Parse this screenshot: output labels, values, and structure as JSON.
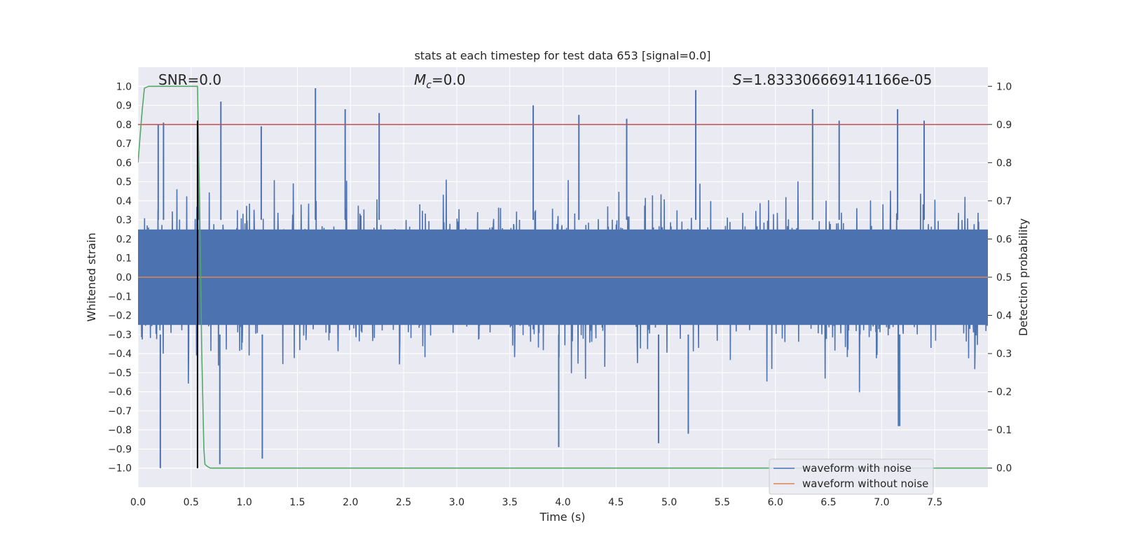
{
  "chart_data": {
    "type": "line",
    "title": "stats at each timestep for test data 653 [signal=0.0]",
    "xlabel": "Time (s)",
    "ylabel_left": "Whitened strain",
    "ylabel_right": "Detection probability",
    "xlim": [
      0.0,
      8.0
    ],
    "ylim_left": [
      -1.1,
      1.1
    ],
    "ylim_right": [
      -0.05,
      1.05
    ],
    "x_ticks": [
      0.0,
      0.5,
      1.0,
      1.5,
      2.0,
      2.5,
      3.0,
      3.5,
      4.0,
      4.5,
      5.0,
      5.5,
      6.0,
      6.5,
      7.0,
      7.5
    ],
    "x_tick_labels": [
      "0.0",
      "0.5",
      "1.0",
      "1.5",
      "2.0",
      "2.5",
      "3.0",
      "3.5",
      "4.0",
      "4.5",
      "5.0",
      "5.5",
      "6.0",
      "6.5",
      "7.0",
      "7.5"
    ],
    "y_ticks_left": [
      1.0,
      0.9,
      0.8,
      0.7,
      0.6,
      0.5,
      0.4,
      0.3,
      0.2,
      0.1,
      0.0,
      -0.1,
      -0.2,
      -0.3,
      -0.4,
      -0.5,
      -0.6,
      -0.7,
      -0.8,
      -0.9,
      -1.0
    ],
    "y_tick_labels_left": [
      "1.0",
      "0.9",
      "0.8",
      "0.7",
      "0.6",
      "0.5",
      "0.4",
      "0.3",
      "0.2",
      "0.1",
      "0.0",
      "−0.1",
      "−0.2",
      "−0.3",
      "−0.4",
      "−0.5",
      "−0.6",
      "−0.7",
      "−0.8",
      "−0.9",
      "−1.0"
    ],
    "y_ticks_right": [
      1.0,
      0.9,
      0.8,
      0.7,
      0.6,
      0.5,
      0.4,
      0.3,
      0.2,
      0.1,
      0.0
    ],
    "y_tick_labels_right": [
      "1.0",
      "0.9",
      "0.8",
      "0.7",
      "0.6",
      "0.5",
      "0.4",
      "0.3",
      "0.2",
      "0.1",
      "0.0"
    ],
    "annotations": {
      "snr": "SNR=0.0",
      "mc_symbol": "M",
      "mc_subscript": "c",
      "mc_value": "=0.0",
      "s_symbol": "S",
      "s_value": "=1.833306669141166e-05"
    },
    "threshold": {
      "value": 0.9,
      "axis": "right",
      "color": "#c44e52"
    },
    "marker_time": 0.56,
    "series": [
      {
        "name": "waveform with noise",
        "color": "#4c72b0",
        "axis": "left",
        "description": "dense noise, envelope approx ±0.4 with peaks to ±1.0",
        "peaks": [
          {
            "x": 0.21,
            "y": -1.0
          },
          {
            "x": 0.19,
            "y": 0.8
          },
          {
            "x": 0.24,
            "y": 0.81
          },
          {
            "x": 0.57,
            "y": 0.66
          },
          {
            "x": 0.78,
            "y": 0.92
          },
          {
            "x": 0.77,
            "y": -0.98
          },
          {
            "x": 1.16,
            "y": 0.79
          },
          {
            "x": 1.17,
            "y": -0.95
          },
          {
            "x": 1.67,
            "y": 0.99
          },
          {
            "x": 1.95,
            "y": 0.88
          },
          {
            "x": 2.27,
            "y": 0.86
          },
          {
            "x": 3.72,
            "y": 0.9
          },
          {
            "x": 3.96,
            "y": -0.89
          },
          {
            "x": 4.15,
            "y": 0.85
          },
          {
            "x": 4.6,
            "y": 0.83
          },
          {
            "x": 4.9,
            "y": -0.87
          },
          {
            "x": 5.25,
            "y": 0.98
          },
          {
            "x": 5.18,
            "y": -0.82
          },
          {
            "x": 6.35,
            "y": 0.88
          },
          {
            "x": 6.6,
            "y": 0.82
          },
          {
            "x": 7.15,
            "y": 0.88
          },
          {
            "x": 7.17,
            "y": -0.78
          },
          {
            "x": 7.4,
            "y": 0.82
          }
        ]
      },
      {
        "name": "waveform without noise",
        "color": "#dd8452",
        "axis": "left",
        "x": [
          0.0,
          8.0
        ],
        "y": [
          0.0,
          0.0
        ]
      },
      {
        "name": "detection probability",
        "color": "#55a868",
        "axis": "right",
        "x": [
          0.0,
          0.02,
          0.04,
          0.06,
          0.1,
          0.15,
          0.3,
          0.55,
          0.56,
          0.58,
          0.6,
          0.62,
          0.63,
          0.65,
          0.68,
          0.7,
          1.0,
          2.0,
          4.0,
          6.0,
          8.0
        ],
        "y": [
          0.8,
          0.87,
          0.94,
          0.995,
          1.0,
          1.0,
          1.0,
          1.0,
          1.0,
          0.7,
          0.3,
          0.05,
          0.01,
          0.005,
          0.0,
          0.0,
          0.0,
          0.0,
          0.0,
          0.0,
          0.0
        ]
      }
    ],
    "legend": {
      "position": "lower-right",
      "entries": [
        "waveform with noise",
        "waveform without noise"
      ]
    },
    "grid": true
  }
}
